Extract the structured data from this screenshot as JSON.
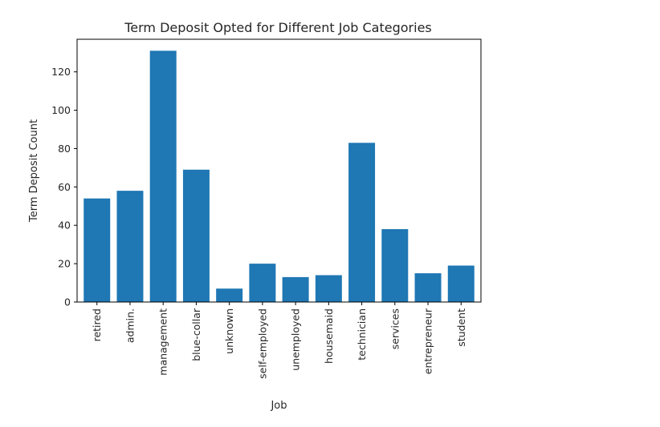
{
  "chart_data": {
    "type": "bar",
    "title": "Term Deposit Opted for Different Job Categories",
    "xlabel": "Job",
    "ylabel": "Term Deposit Count",
    "categories": [
      "retired",
      "admin.",
      "management",
      "blue-collar",
      "unknown",
      "self-employed",
      "unemployed",
      "housemaid",
      "technician",
      "services",
      "entrepreneur",
      "student"
    ],
    "values": [
      54,
      58,
      131,
      69,
      7,
      20,
      13,
      14,
      83,
      38,
      15,
      19
    ],
    "ylim": [
      0,
      137
    ],
    "yticks": [
      0,
      20,
      40,
      60,
      80,
      100,
      120
    ],
    "bar_color": "#1f77b4",
    "grid": false
  }
}
